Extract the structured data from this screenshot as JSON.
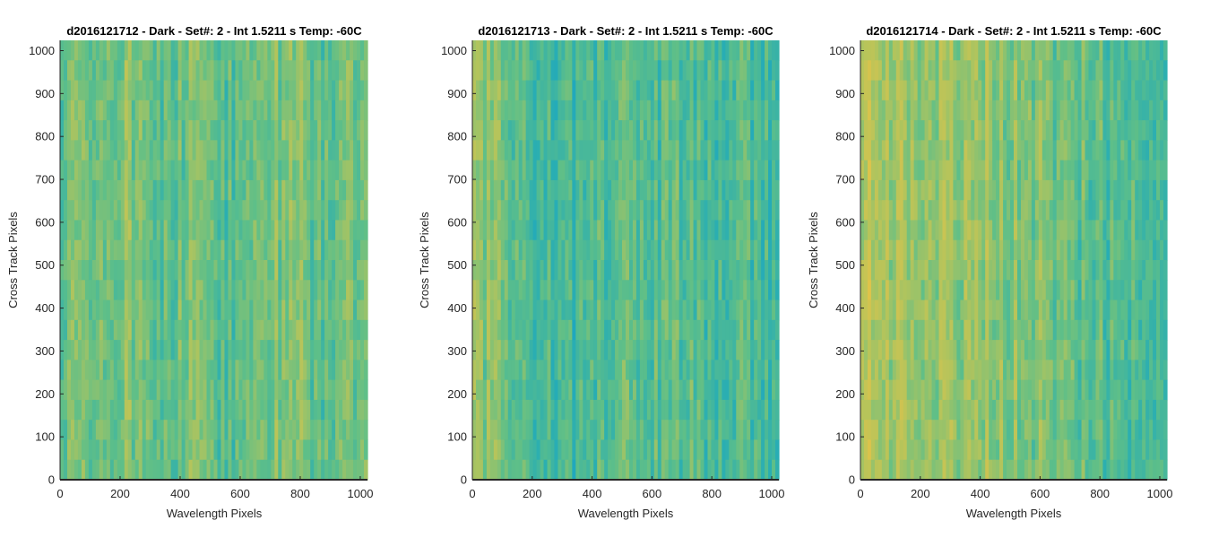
{
  "chart_data": [
    {
      "type": "heatmap",
      "title": "d2016121712 - Dark - Set#: 2 - Int 1.5211 s Temp: -60C",
      "xlabel": "Wavelength Pixels",
      "ylabel": "Cross Track Pixels",
      "xlim": [
        0,
        1024
      ],
      "ylim": [
        0,
        1024
      ],
      "xticks": [
        0,
        200,
        400,
        600,
        800,
        1000
      ],
      "yticks": [
        0,
        100,
        200,
        300,
        400,
        500,
        600,
        700,
        800,
        900,
        1000
      ],
      "column_profile": [
        0.52,
        0.55,
        0.5,
        0.53,
        0.58,
        0.6,
        0.55,
        0.5,
        0.47,
        0.52,
        0.55,
        0.5,
        0.46,
        0.48,
        0.52,
        0.5,
        0.55,
        0.62,
        0.58,
        0.52,
        0.5,
        0.48,
        0.55,
        0.5
      ],
      "colormap": [
        "#0f9fcf",
        "#2aaeb2",
        "#5fbf88",
        "#b3c45c",
        "#e2c349"
      ]
    },
    {
      "type": "heatmap",
      "title": "d2016121713 - Dark - Set#: 2 - Int 1.5211 s Temp: -60C",
      "xlabel": "Wavelength Pixels",
      "ylabel": "Cross Track Pixels",
      "xlim": [
        0,
        1024
      ],
      "ylim": [
        0,
        1024
      ],
      "xticks": [
        0,
        200,
        400,
        600,
        800,
        1000
      ],
      "yticks": [
        0,
        100,
        200,
        300,
        400,
        500,
        600,
        700,
        800,
        900,
        1000
      ],
      "column_profile": [
        0.62,
        0.6,
        0.58,
        0.5,
        0.45,
        0.4,
        0.36,
        0.35,
        0.38,
        0.42,
        0.45,
        0.48,
        0.5,
        0.47,
        0.44,
        0.46,
        0.48,
        0.45,
        0.42,
        0.4,
        0.42,
        0.4,
        0.38,
        0.36
      ],
      "colormap": [
        "#0f9fcf",
        "#2aaeb2",
        "#5fbf88",
        "#b3c45c",
        "#e2c349"
      ]
    },
    {
      "type": "heatmap",
      "title": "d2016121714 - Dark - Set#: 2 - Int 1.5211 s Temp: -60C",
      "xlabel": "Wavelength Pixels",
      "ylabel": "Cross Track Pixels",
      "xlim": [
        0,
        1024
      ],
      "ylim": [
        0,
        1024
      ],
      "xticks": [
        0,
        200,
        400,
        600,
        800,
        1000
      ],
      "yticks": [
        0,
        100,
        200,
        300,
        400,
        500,
        600,
        700,
        800,
        900,
        1000
      ],
      "column_profile": [
        0.78,
        0.75,
        0.72,
        0.7,
        0.72,
        0.7,
        0.66,
        0.64,
        0.65,
        0.68,
        0.66,
        0.62,
        0.6,
        0.58,
        0.55,
        0.52,
        0.5,
        0.48,
        0.46,
        0.44,
        0.42,
        0.4,
        0.4,
        0.42
      ],
      "colormap": [
        "#0f9fcf",
        "#2aaeb2",
        "#5fbf88",
        "#b3c45c",
        "#e2c349"
      ]
    }
  ]
}
